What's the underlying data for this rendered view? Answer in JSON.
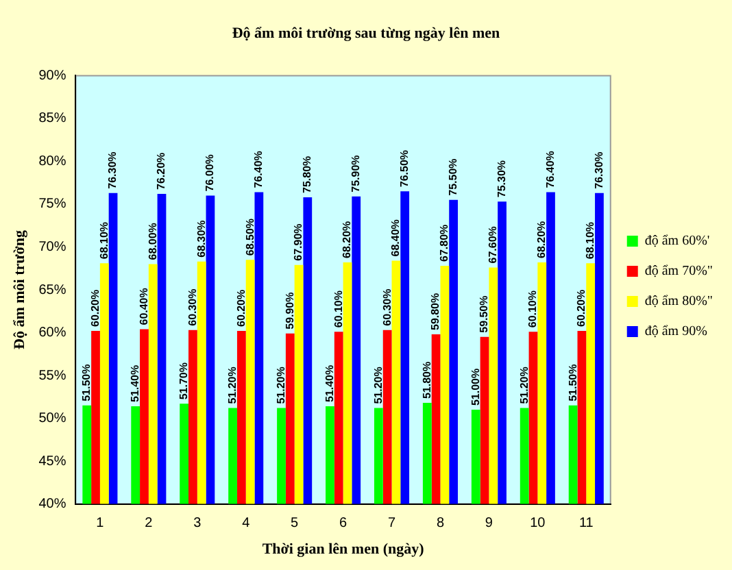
{
  "chart_data": {
    "type": "bar",
    "title": "Độ ẩm môi trường sau từng ngày lên men",
    "xlabel": "Thời gian lên men (ngày)",
    "ylabel": "Độ ẩm môi trường",
    "categories": [
      "1",
      "2",
      "3",
      "4",
      "5",
      "6",
      "7",
      "8",
      "9",
      "10",
      "11"
    ],
    "series": [
      {
        "name": "độ ẩm 60%'",
        "color": "#00ff00",
        "values": [
          51.5,
          51.4,
          51.7,
          51.2,
          51.2,
          51.4,
          51.2,
          51.8,
          51.0,
          51.2,
          51.5
        ],
        "value_labels": [
          "51.50%",
          "51.40%",
          "51.70%",
          "51.20%",
          "51.20%",
          "51.40%",
          "51.20%",
          "51.80%",
          "51.00%",
          "51.20%",
          "51.50%"
        ]
      },
      {
        "name": "độ ẩm 70%\"",
        "color": "#ff0000",
        "values": [
          60.2,
          60.4,
          60.3,
          60.2,
          59.9,
          60.1,
          60.3,
          59.8,
          59.5,
          60.1,
          60.2
        ],
        "value_labels": [
          "60.20%",
          "60.40%",
          "60.30%",
          "60.20%",
          "59.90%",
          "60.10%",
          "60.30%",
          "59.80%",
          "59.50%",
          "60.10%",
          "60.20%"
        ]
      },
      {
        "name": "độ ẩm 80%\"",
        "color": "#ffff00",
        "values": [
          68.1,
          68.0,
          68.3,
          68.5,
          67.9,
          68.2,
          68.4,
          67.8,
          67.6,
          68.2,
          68.1
        ],
        "value_labels": [
          "68.10%",
          "68.00%",
          "68.30%",
          "68.50%",
          "67.90%",
          "68.20%",
          "68.40%",
          "67.80%",
          "67.60%",
          "68.20%",
          "68.10%"
        ]
      },
      {
        "name": "độ ẩm 90%",
        "color": "#0000ff",
        "values": [
          76.3,
          76.2,
          76.0,
          76.4,
          75.8,
          75.9,
          76.5,
          75.5,
          75.3,
          76.4,
          76.3
        ],
        "value_labels": [
          "76.30%",
          "76.20%",
          "76.00%",
          "76.40%",
          "75.80%",
          "75.90%",
          "76.50%",
          "75.50%",
          "75.30%",
          "76.40%",
          "76.30%"
        ]
      }
    ],
    "ylim": [
      40,
      90
    ],
    "yticks": [
      {
        "value": 40,
        "label": "40%"
      },
      {
        "value": 45,
        "label": "45%"
      },
      {
        "value": 50,
        "label": "50%"
      },
      {
        "value": 55,
        "label": "55%"
      },
      {
        "value": 60,
        "label": "60%"
      },
      {
        "value": 65,
        "label": "65%"
      },
      {
        "value": 70,
        "label": "70%"
      },
      {
        "value": 75,
        "label": "75%"
      },
      {
        "value": 80,
        "label": "80%"
      },
      {
        "value": 85,
        "label": "85%"
      },
      {
        "value": 90,
        "label": "90%"
      }
    ],
    "grid": false,
    "legend": "right"
  }
}
